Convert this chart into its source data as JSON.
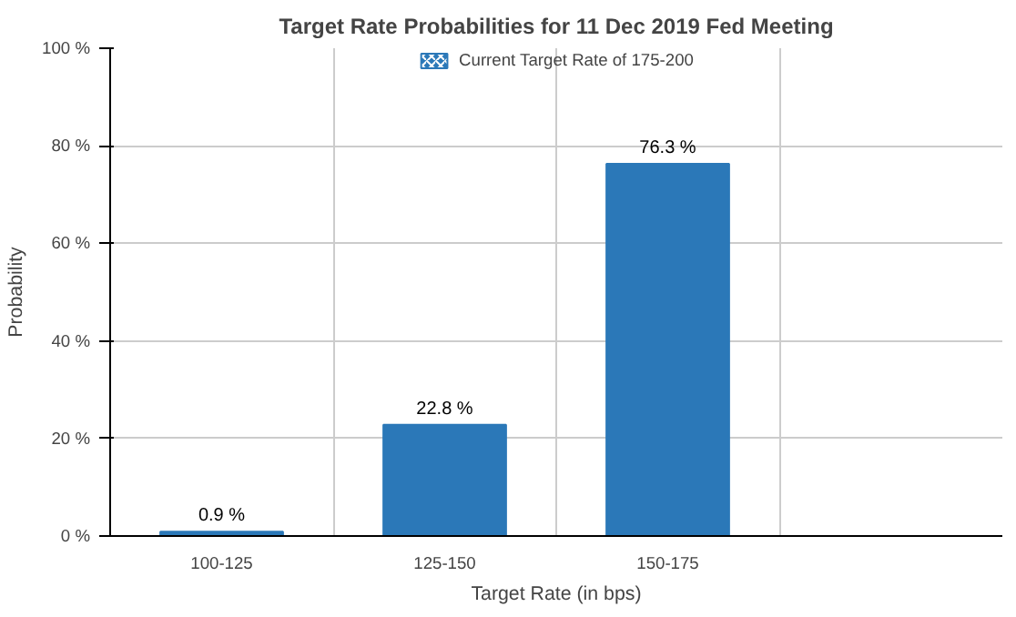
{
  "chart_data": {
    "type": "bar",
    "title": "Target Rate Probabilities for 11 Dec 2019 Fed Meeting",
    "xlabel": "Target Rate (in bps)",
    "ylabel": "Probability",
    "categories": [
      "100-125",
      "125-150",
      "150-175",
      null
    ],
    "series": [
      {
        "color": "#2b78b8",
        "values": [
          0.9,
          22.8,
          76.3,
          null
        ],
        "value_labels": [
          "0.9 %",
          "22.8 %",
          "76.3 %",
          null
        ]
      },
      {
        "name": "Current Target Rate of 175-200",
        "color": "#2b78b8",
        "values": [
          null,
          null,
          null,
          null
        ]
      }
    ],
    "ylim": [
      0,
      100
    ],
    "yticks": [
      {
        "value": 0,
        "label": "0 %"
      },
      {
        "value": 20,
        "label": "20 %"
      },
      {
        "value": 40,
        "label": "40 %"
      },
      {
        "value": 60,
        "label": "60 %"
      },
      {
        "value": 80,
        "label": "80 %"
      },
      {
        "value": 100,
        "label": "100 %"
      }
    ],
    "grid": true,
    "legend": "top"
  }
}
